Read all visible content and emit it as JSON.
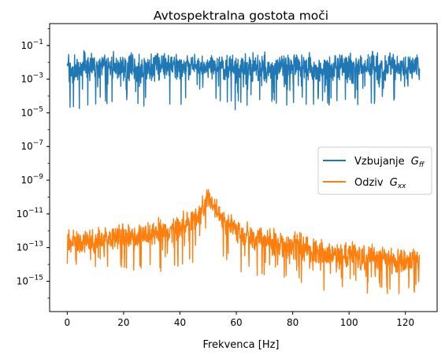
{
  "chart_data": {
    "type": "line",
    "title": "Avtospektralna gostota moči",
    "xlabel": "Frekvenca [Hz]",
    "ylabel": "",
    "xlim": [
      -6.25,
      131.25
    ],
    "ylim_log10": [
      -16.8,
      0.3
    ],
    "y_scale": "log",
    "x_ticks": [
      0,
      20,
      40,
      60,
      80,
      100,
      120
    ],
    "y_ticks": [
      {
        "base": "10",
        "exp": "−1",
        "value": -1
      },
      {
        "base": "10",
        "exp": "−3",
        "value": -3
      },
      {
        "base": "10",
        "exp": "−5",
        "value": -5
      },
      {
        "base": "10",
        "exp": "−7",
        "value": -7
      },
      {
        "base": "10",
        "exp": "−9",
        "value": -9
      },
      {
        "base": "10",
        "exp": "−11",
        "value": -11
      },
      {
        "base": "10",
        "exp": "−13",
        "value": -13
      },
      {
        "base": "10",
        "exp": "−15",
        "value": -15
      }
    ],
    "grid": false,
    "legend_position": "center-right",
    "series": [
      {
        "name": "Vzbujanje",
        "symbol": "G",
        "subscript": "ff",
        "color": "#1f77b4",
        "x": [
          0,
          5,
          10,
          15,
          20,
          25,
          30,
          35,
          40,
          45,
          50,
          55,
          60,
          65,
          70,
          75,
          80,
          85,
          90,
          95,
          100,
          105,
          110,
          115,
          120,
          125
        ],
        "y_log10": [
          -2.3,
          -2.2,
          -2.3,
          -2.2,
          -2.3,
          -2.2,
          -2.3,
          -2.2,
          -2.2,
          -2.2,
          -2.3,
          -2.2,
          -2.3,
          -2.2,
          -2.3,
          -2.2,
          -2.3,
          -2.2,
          -2.3,
          -2.2,
          -2.3,
          -2.2,
          -2.3,
          -2.2,
          -2.3,
          -2.3
        ],
        "y_log10_min": [
          -4.9,
          -4.9,
          -4.5,
          -4.6,
          -4.5,
          -4.9,
          -4.6,
          -4.5,
          -4.5,
          -4.5,
          -4.6,
          -4.6,
          -4.9,
          -4.7,
          -4.6,
          -4.5,
          -4.6,
          -4.5,
          -4.9,
          -4.7,
          -4.5,
          -4.6,
          -4.6,
          -4.6,
          -4.5,
          -3.3
        ],
        "y_log10_max": [
          -1.2,
          -1.2,
          -1.3,
          -1.3,
          -1.3,
          -1.3,
          -1.2,
          -1.3,
          -1.3,
          -1.2,
          -1.2,
          -1.3,
          -1.3,
          -1.2,
          -1.3,
          -1.3,
          -1.2,
          -1.3,
          -1.3,
          -1.2,
          -1.3,
          -1.3,
          -1.2,
          -1.3,
          -1.2,
          -1.4
        ]
      },
      {
        "name": "Odziv",
        "symbol": "G",
        "subscript": "xx",
        "color": "#ff7f0e",
        "x": [
          0,
          5,
          10,
          15,
          20,
          25,
          30,
          35,
          40,
          45,
          48,
          50,
          52,
          55,
          60,
          65,
          70,
          75,
          80,
          85,
          90,
          95,
          100,
          105,
          110,
          115,
          120,
          125
        ],
        "y_log10": [
          -12.6,
          -12.6,
          -12.5,
          -12.5,
          -12.4,
          -12.3,
          -12.1,
          -11.9,
          -11.6,
          -11.1,
          -10.5,
          -9.6,
          -10.3,
          -11.2,
          -11.9,
          -12.3,
          -12.5,
          -12.8,
          -12.9,
          -13.1,
          -13.3,
          -13.4,
          -13.5,
          -13.6,
          -13.7,
          -13.7,
          -13.8,
          -13.8
        ],
        "y_log10_min": [
          -14.3,
          -14.7,
          -14.4,
          -14.6,
          -14.7,
          -14.5,
          -14.4,
          -14.5,
          -14.2,
          -13.9,
          -13.3,
          -12.0,
          -13.0,
          -13.9,
          -14.5,
          -14.8,
          -14.8,
          -14.9,
          -15.1,
          -15.2,
          -15.6,
          -15.6,
          -15.6,
          -15.7,
          -15.8,
          -15.9,
          -15.8,
          -15.6
        ],
        "y_log10_max": [
          -11.7,
          -11.8,
          -11.7,
          -11.6,
          -11.5,
          -11.4,
          -11.3,
          -11.0,
          -10.8,
          -10.4,
          -9.8,
          -9.3,
          -9.7,
          -10.5,
          -11.0,
          -11.4,
          -11.6,
          -11.8,
          -11.9,
          -12.0,
          -12.3,
          -12.5,
          -12.5,
          -12.6,
          -12.7,
          -12.8,
          -12.9,
          -12.9
        ]
      }
    ]
  }
}
